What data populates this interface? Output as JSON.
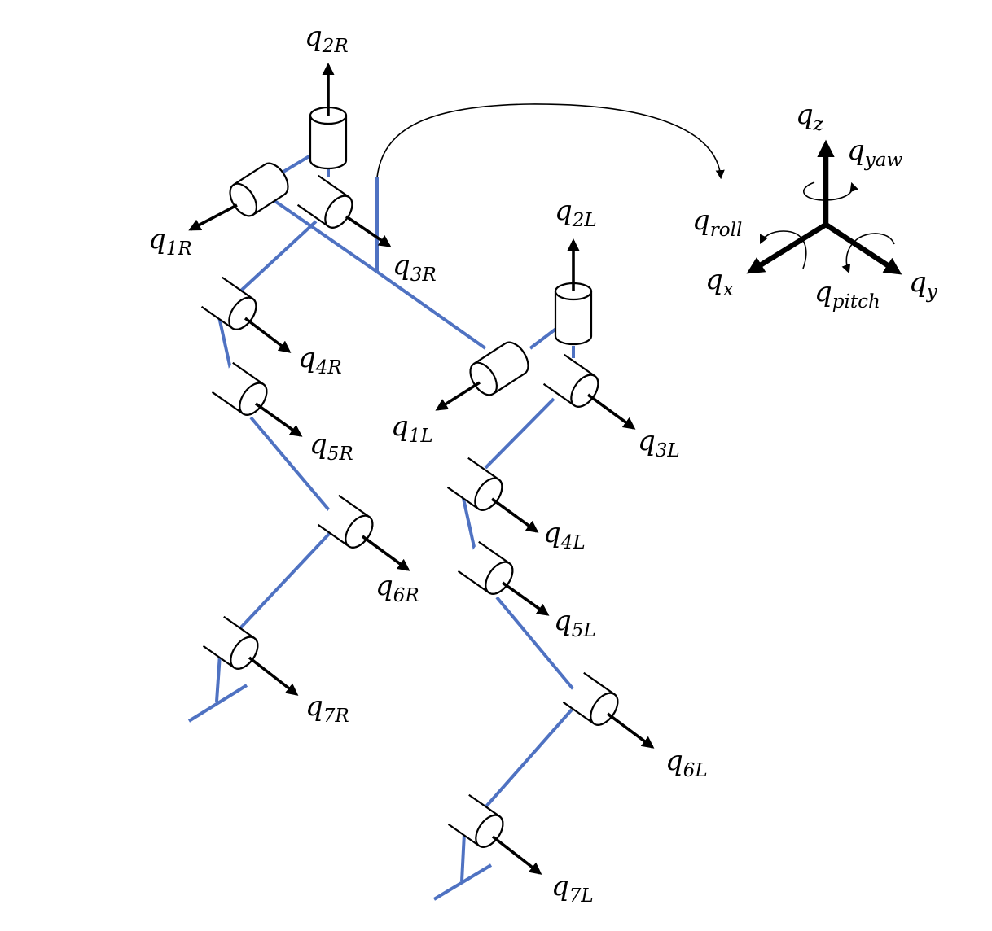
{
  "joints": {
    "q1R": {
      "base": "q",
      "sub": "1R"
    },
    "q2R": {
      "base": "q",
      "sub": "2R"
    },
    "q3R": {
      "base": "q",
      "sub": "3R"
    },
    "q4R": {
      "base": "q",
      "sub": "4R"
    },
    "q5R": {
      "base": "q",
      "sub": "5R"
    },
    "q6R": {
      "base": "q",
      "sub": "6R"
    },
    "q7R": {
      "base": "q",
      "sub": "7R"
    },
    "q1L": {
      "base": "q",
      "sub": "1L"
    },
    "q2L": {
      "base": "q",
      "sub": "2L"
    },
    "q3L": {
      "base": "q",
      "sub": "3L"
    },
    "q4L": {
      "base": "q",
      "sub": "4L"
    },
    "q5L": {
      "base": "q",
      "sub": "5L"
    },
    "q6L": {
      "base": "q",
      "sub": "6L"
    },
    "q7L": {
      "base": "q",
      "sub": "7L"
    }
  },
  "frame": {
    "qx": {
      "base": "q",
      "sub": "x"
    },
    "qy": {
      "base": "q",
      "sub": "y"
    },
    "qz": {
      "base": "q",
      "sub": "z"
    },
    "qroll": {
      "base": "q",
      "sub": "roll"
    },
    "qpitch": {
      "base": "q",
      "sub": "pitch"
    },
    "qyaw": {
      "base": "q",
      "sub": "yaw"
    }
  },
  "colors": {
    "link": "#4f72c2",
    "ink": "#000000"
  }
}
